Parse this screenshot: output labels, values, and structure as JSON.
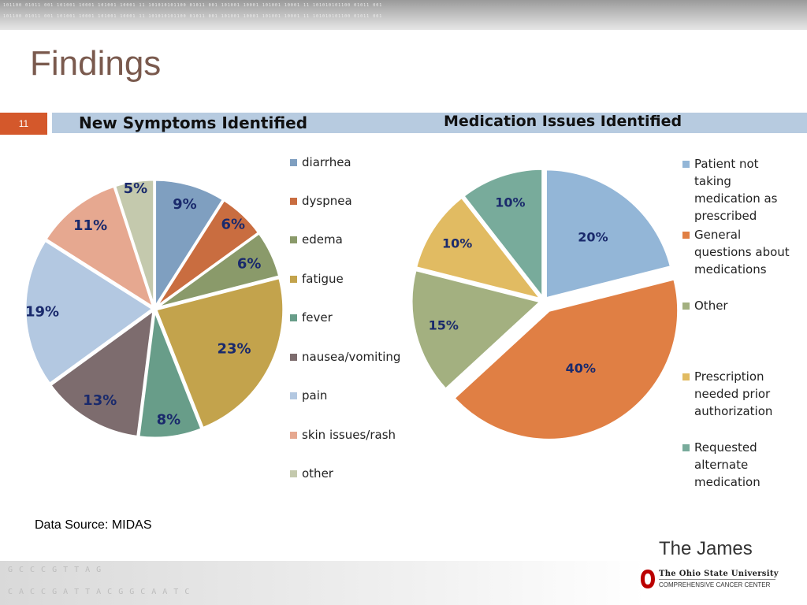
{
  "slide": {
    "title": "Findings",
    "slide_number": "11",
    "data_source": "Data Source: MIDAS",
    "brand": "The James",
    "institution": "The Ohio State University",
    "institution_sub": "COMPREHENSIVE CANCER CENTER",
    "decor_binary": "101100 01011 001 101001 10001 101001 10001 11 101010101100 01011 001 101001 10001 101001 10001 11 101010101100 01011 001",
    "decor_dna_1": "GCCCGTTAG",
    "decor_dna_2": "CACCGATTACGGCAATC"
  },
  "chart_data": [
    {
      "type": "pie",
      "title": "New Symptoms Identified",
      "categories": [
        "diarrhea",
        "dyspnea",
        "edema",
        "fatigue",
        "fever",
        "nausea/vomiting",
        "pain",
        "skin issues/rash",
        "other"
      ],
      "values": [
        9,
        6,
        6,
        23,
        8,
        13,
        19,
        11,
        5
      ],
      "labels": [
        "9%",
        "6%",
        "6%",
        "23%",
        "8%",
        "13%",
        "19%",
        "11%",
        "5%"
      ],
      "colors": [
        "#7f9fc0",
        "#c96d40",
        "#8a9a6a",
        "#c3a34c",
        "#689d89",
        "#7d6c6e",
        "#b3c8e1",
        "#e6a890",
        "#c4c9ad"
      ],
      "legend_position": "right"
    },
    {
      "type": "pie",
      "title": "Medication Issues Identified",
      "categories": [
        "Patient not taking medication as prescribed",
        "General questions about medications",
        "Other",
        "Prescription needed prior authorization",
        "Requested alternate medication"
      ],
      "values": [
        20,
        40,
        15,
        10,
        10
      ],
      "labels": [
        "20%",
        "40%",
        "15%",
        "10%",
        "10%"
      ],
      "colors": [
        "#93b6d7",
        "#e07f44",
        "#a3b080",
        "#e1bb62",
        "#78ab9b"
      ],
      "legend_position": "right"
    }
  ]
}
